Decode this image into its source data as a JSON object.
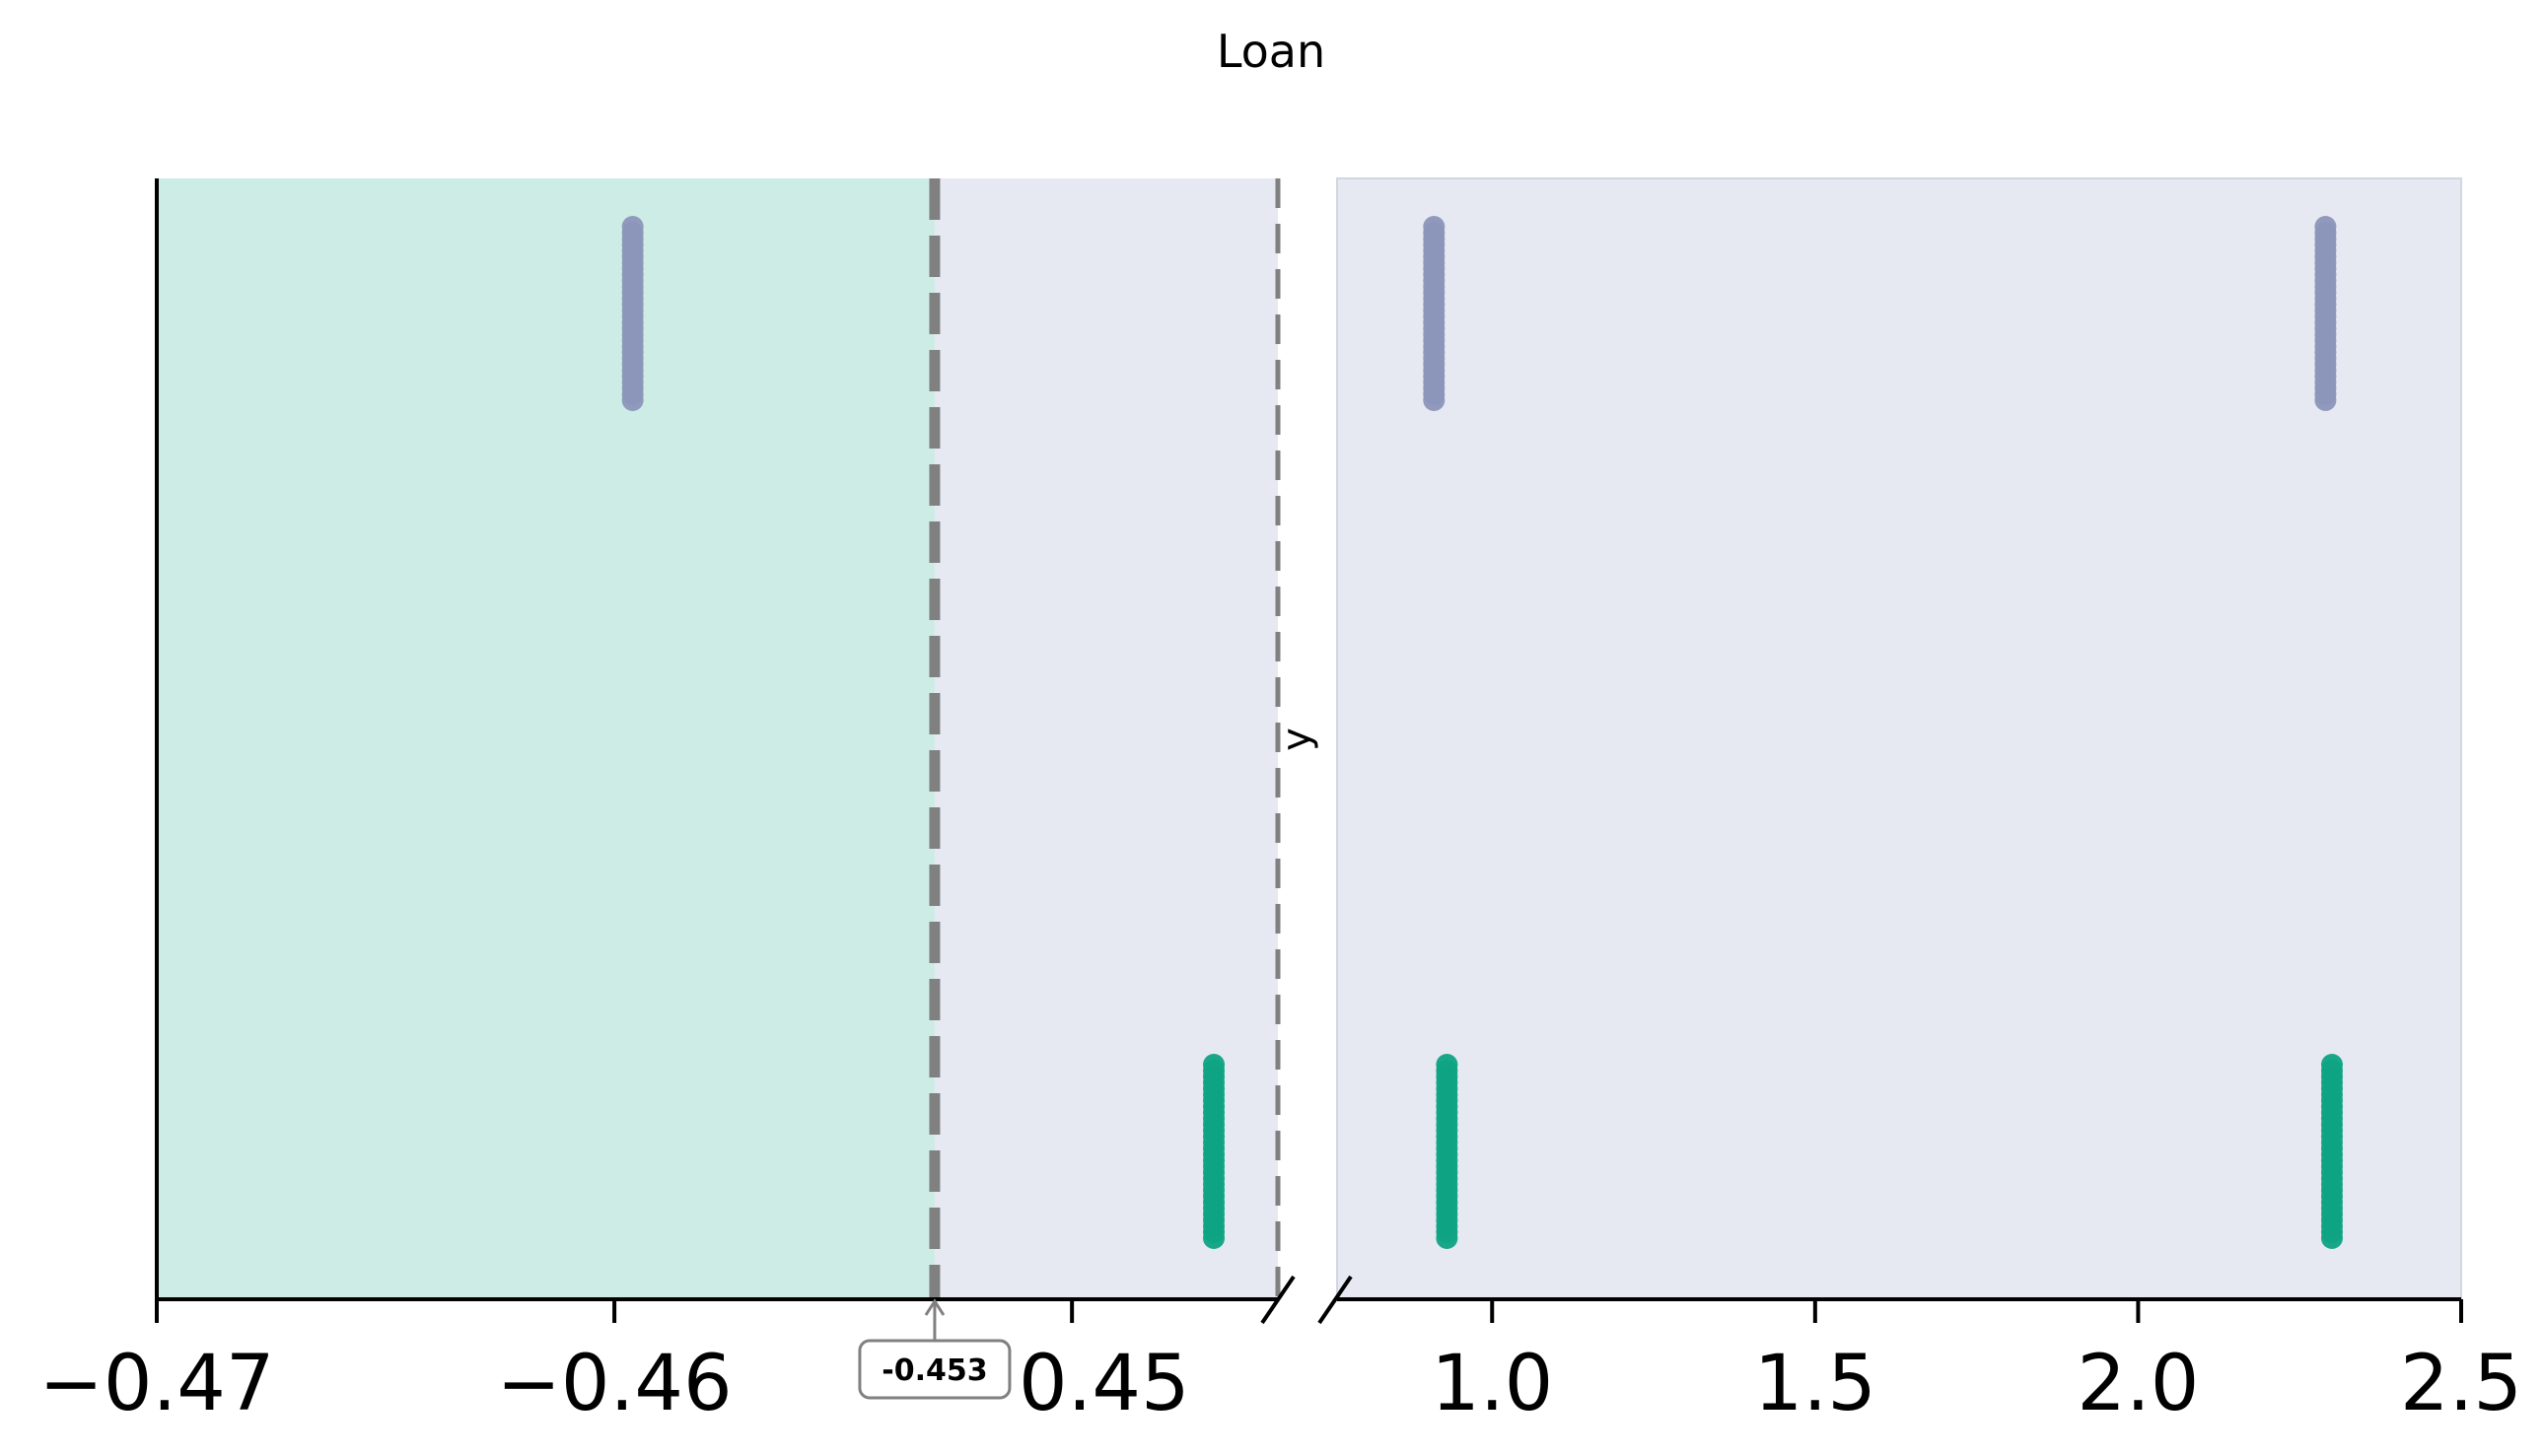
{
  "chart_data": {
    "type": "scatter",
    "title": "Loan",
    "xlabel": "",
    "ylabel": "y",
    "broken_x_axis": true,
    "segments": [
      {
        "xlim": [
          -0.47,
          -0.4455
        ],
        "ticks": [
          -0.47,
          -0.46,
          -0.45
        ],
        "tick_labels": [
          "−0.47",
          "−0.46",
          "−0.45"
        ]
      },
      {
        "xlim": [
          0.76,
          2.5
        ],
        "ticks": [
          1.0,
          1.5,
          2.0,
          2.5
        ],
        "tick_labels": [
          "1.0",
          "1.5",
          "2.0",
          "2.5"
        ]
      }
    ],
    "threshold": {
      "value": -0.453,
      "label": "-0.453"
    },
    "reference_line": {
      "value": -0.4455
    },
    "regions": [
      {
        "name": "left of threshold",
        "color": "#cdece6"
      },
      {
        "name": "right of threshold",
        "color": "#e6e9f1"
      }
    ],
    "groups": [
      {
        "x": -0.4596,
        "y": 1,
        "color": "#8c96b9"
      },
      {
        "x": -0.4469,
        "y": 0,
        "color": "#0fa383"
      },
      {
        "x": 0.91,
        "y": 1,
        "color": "#8c96b9"
      },
      {
        "x": 0.93,
        "y": 0,
        "color": "#0fa383"
      },
      {
        "x": 2.29,
        "y": 1,
        "color": "#8c96b9"
      },
      {
        "x": 2.3,
        "y": 0,
        "color": "#0fa383"
      }
    ],
    "colors": {
      "class_1": "#8c96b9",
      "class_0": "#0fa383",
      "threshold_line": "#808080"
    },
    "grid": false,
    "legend": "none"
  }
}
